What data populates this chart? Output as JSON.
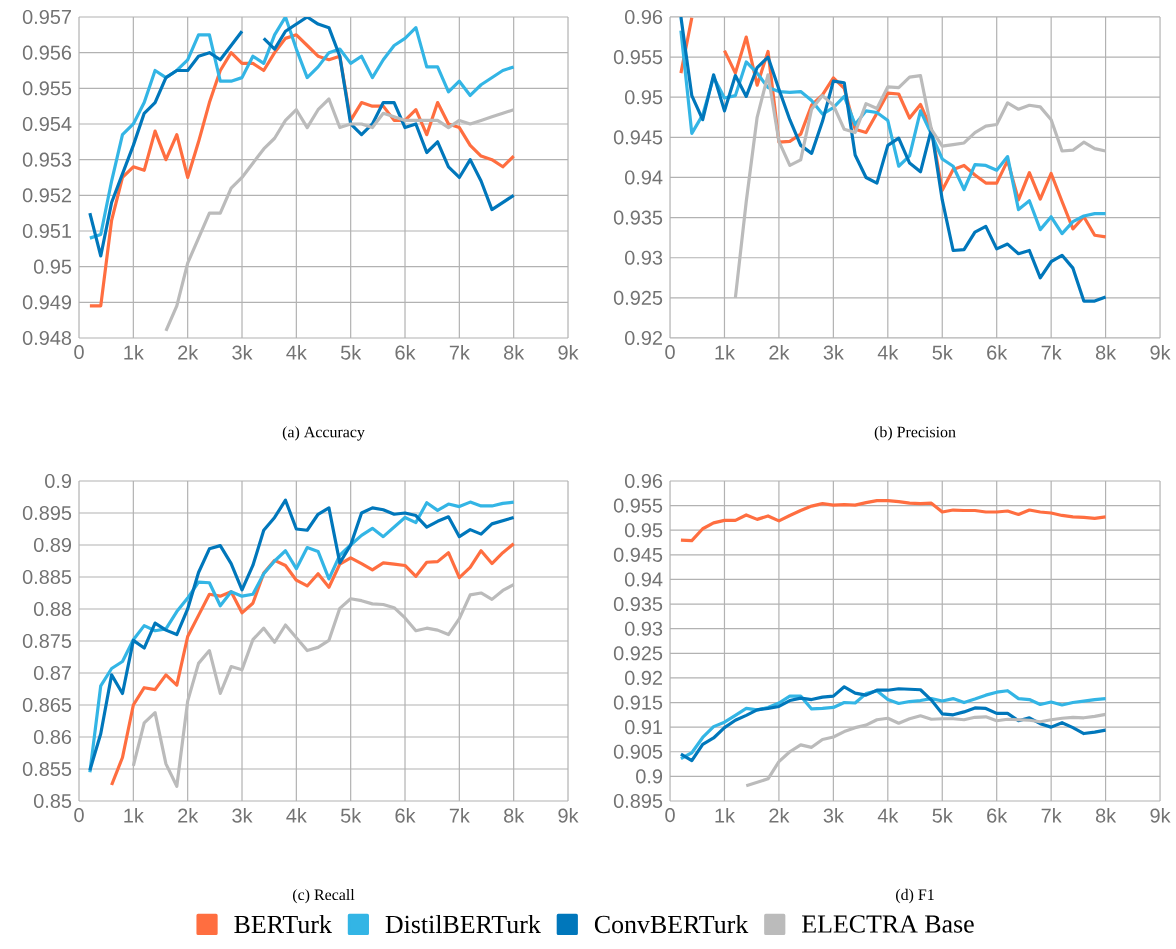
{
  "chart_data": [
    {
      "type": "line",
      "title": "(a)  Accuracy",
      "legend": "bottom",
      "grid": true,
      "x": [
        200,
        400,
        600,
        800,
        1000,
        1200,
        1400,
        1600,
        1800,
        2000,
        2200,
        2400,
        2600,
        2800,
        3000,
        3200,
        3400,
        3600,
        3800,
        4000,
        4200,
        4400,
        4600,
        4800,
        5000,
        5200,
        5400,
        5600,
        5800,
        6000,
        6200,
        6400,
        6600,
        6800,
        7000,
        7200,
        7400,
        7600,
        7800,
        8000
      ],
      "xlim": [
        0,
        9000
      ],
      "xticks": [
        {
          "value": 0,
          "label": "0"
        },
        {
          "value": 1000,
          "label": "1k"
        },
        {
          "value": 2000,
          "label": "2k"
        },
        {
          "value": 3000,
          "label": "3k"
        },
        {
          "value": 4000,
          "label": "4k"
        },
        {
          "value": 5000,
          "label": "5k"
        },
        {
          "value": 6000,
          "label": "6k"
        },
        {
          "value": 7000,
          "label": "7k"
        },
        {
          "value": 8000,
          "label": "8k"
        },
        {
          "value": 9000,
          "label": "9k"
        }
      ],
      "ylim": [
        0.948,
        0.957
      ],
      "yticks": [
        0.948,
        0.949,
        0.95,
        0.951,
        0.952,
        0.953,
        0.954,
        0.955,
        0.956,
        0.957
      ],
      "series": [
        {
          "name": "BERTurk",
          "color": "#ff6e40",
          "values": [
            0.9489,
            0.9489,
            0.9513,
            0.9525,
            0.9528,
            0.9527,
            0.9538,
            0.953,
            0.9537,
            0.9525,
            0.9535,
            0.9546,
            0.9555,
            0.956,
            0.9557,
            0.9557,
            0.9555,
            0.956,
            0.9564,
            0.9565,
            0.9562,
            0.9559,
            0.9558,
            0.9559,
            0.9541,
            0.9546,
            0.9545,
            0.9545,
            0.9541,
            0.9541,
            0.9544,
            0.9537,
            0.9546,
            0.954,
            0.9539,
            0.9534,
            0.9531,
            0.953,
            0.9528,
            0.9531
          ]
        },
        {
          "name": "DistilBERTurk",
          "color": "#33b5e5",
          "values": [
            0.9508,
            0.9509,
            0.9524,
            0.9537,
            0.954,
            0.9546,
            0.9555,
            0.9553,
            0.9555,
            0.9558,
            0.9565,
            0.9565,
            0.9552,
            0.9552,
            0.9553,
            0.9559,
            0.9557,
            0.9565,
            0.957,
            0.9561,
            0.9553,
            0.9556,
            0.956,
            0.9561,
            0.9557,
            0.9559,
            0.9553,
            0.9558,
            0.9562,
            0.9564,
            0.9567,
            0.9556,
            0.9556,
            0.9549,
            0.9552,
            0.9548,
            0.9551,
            0.9553,
            0.9555,
            0.9556
          ]
        },
        {
          "name": "ConvBERTurk",
          "color": "#0077bb",
          "values": [
            0.9515,
            0.9503,
            0.9518,
            0.9526,
            0.9534,
            0.9543,
            0.9546,
            0.9553,
            0.9555,
            0.9555,
            0.9559,
            0.956,
            0.9558,
            0.9562,
            0.9566,
            null,
            0.9564,
            0.9561,
            0.9566,
            0.9568,
            0.957,
            0.9568,
            0.9567,
            0.9559,
            0.954,
            0.9537,
            0.954,
            0.9546,
            0.9546,
            0.9539,
            0.954,
            0.9532,
            0.9535,
            0.9528,
            0.9525,
            0.953,
            0.9524,
            0.9516,
            0.9518,
            0.952
          ]
        },
        {
          "name": "ELECTRA Base",
          "color": "#bbbbbb",
          "values": [
            null,
            null,
            null,
            null,
            null,
            null,
            null,
            0.9482,
            0.9489,
            0.9501,
            0.9508,
            0.9515,
            0.9515,
            0.9522,
            0.9525,
            0.9529,
            0.9533,
            0.9536,
            0.9541,
            0.9544,
            0.9539,
            0.9544,
            0.9547,
            0.9539,
            0.954,
            0.954,
            0.9539,
            0.9543,
            0.9542,
            0.9541,
            0.9541,
            0.9541,
            0.9541,
            0.9539,
            0.9541,
            0.954,
            0.9541,
            0.9542,
            0.9543,
            0.9544
          ]
        }
      ]
    },
    {
      "type": "line",
      "title": "(b)  Precision",
      "grid": true,
      "x": [
        200,
        400,
        600,
        800,
        1000,
        1200,
        1400,
        1600,
        1800,
        2000,
        2200,
        2400,
        2600,
        2800,
        3000,
        3200,
        3400,
        3600,
        3800,
        4000,
        4200,
        4400,
        4600,
        4800,
        5000,
        5200,
        5400,
        5600,
        5800,
        6000,
        6200,
        6400,
        6600,
        6800,
        7000,
        7200,
        7400,
        7600,
        7800,
        8000
      ],
      "xlim": [
        0,
        9000
      ],
      "xticks": [
        {
          "value": 0,
          "label": "0"
        },
        {
          "value": 1000,
          "label": "1k"
        },
        {
          "value": 2000,
          "label": "2k"
        },
        {
          "value": 3000,
          "label": "3k"
        },
        {
          "value": 4000,
          "label": "4k"
        },
        {
          "value": 5000,
          "label": "5k"
        },
        {
          "value": 6000,
          "label": "6k"
        },
        {
          "value": 7000,
          "label": "7k"
        },
        {
          "value": 8000,
          "label": "8k"
        },
        {
          "value": 9000,
          "label": "9k"
        }
      ],
      "ylim": [
        0.92,
        0.96
      ],
      "yticks": [
        0.92,
        0.925,
        0.93,
        0.935,
        0.94,
        0.945,
        0.95,
        0.955,
        0.96
      ],
      "series": [
        {
          "color": "#ff6e40",
          "values": [
            0.953,
            0.9599,
            null,
            null,
            0.9558,
            0.953,
            0.9575,
            0.9515,
            0.9557,
            0.9444,
            0.9445,
            0.9454,
            0.949,
            0.9503,
            0.9524,
            0.9511,
            0.946,
            0.9456,
            0.948,
            0.9505,
            0.9504,
            0.9474,
            0.9491,
            0.946,
            0.9384,
            0.941,
            0.9415,
            0.9403,
            0.9393,
            0.9393,
            0.9421,
            0.9372,
            0.9406,
            0.9373,
            0.9405,
            0.937,
            0.9336,
            0.9351,
            0.9328,
            0.9326
          ]
        },
        {
          "color": "#33b5e5",
          "values": [
            0.9583,
            0.9455,
            0.9478,
            0.9525,
            0.9499,
            0.9502,
            0.9544,
            0.953,
            0.9512,
            0.9507,
            0.9506,
            0.9507,
            0.9496,
            0.9479,
            0.9487,
            0.9501,
            0.9466,
            0.9483,
            0.9481,
            0.9471,
            0.9414,
            0.9427,
            0.9483,
            0.9454,
            0.9423,
            0.9414,
            0.9385,
            0.9416,
            0.9415,
            0.9409,
            0.9426,
            0.936,
            0.9371,
            0.9335,
            0.9351,
            0.933,
            0.9345,
            0.9352,
            0.9355,
            0.9355
          ]
        },
        {
          "color": "#0077bb",
          "values": [
            0.96,
            0.9502,
            0.9472,
            0.9528,
            0.9483,
            0.9527,
            0.9501,
            0.9537,
            0.955,
            0.951,
            0.9472,
            0.944,
            0.943,
            0.947,
            0.952,
            0.9518,
            0.9428,
            0.94,
            0.9393,
            0.944,
            0.9449,
            0.9418,
            0.9407,
            0.946,
            0.9372,
            0.9309,
            0.931,
            0.9332,
            0.9339,
            0.9311,
            0.9317,
            0.9305,
            0.9309,
            0.9275,
            0.9295,
            0.9303,
            0.9287,
            0.9246,
            0.9246,
            0.9251
          ]
        },
        {
          "color": "#bbbbbb",
          "values": [
            null,
            null,
            null,
            null,
            null,
            0.925,
            0.937,
            0.9475,
            0.9528,
            0.9445,
            0.9415,
            0.9422,
            0.9485,
            0.9502,
            0.949,
            0.946,
            0.9456,
            0.9492,
            0.9486,
            0.9513,
            0.9512,
            0.9525,
            0.9527,
            0.946,
            0.9439,
            0.9441,
            0.9443,
            0.9456,
            0.9464,
            0.9466,
            0.9493,
            0.9485,
            0.949,
            0.9488,
            0.9472,
            0.9433,
            0.9434,
            0.9444,
            0.9436,
            0.9433
          ]
        }
      ]
    },
    {
      "type": "line",
      "title": "(c)  Recall",
      "grid": true,
      "x": [
        200,
        400,
        600,
        800,
        1000,
        1200,
        1400,
        1600,
        1800,
        2000,
        2200,
        2400,
        2600,
        2800,
        3000,
        3200,
        3400,
        3600,
        3800,
        4000,
        4200,
        4400,
        4600,
        4800,
        5000,
        5200,
        5400,
        5600,
        5800,
        6000,
        6200,
        6400,
        6600,
        6800,
        7000,
        7200,
        7400,
        7600,
        7800,
        8000
      ],
      "xlim": [
        0,
        9000
      ],
      "xticks": [
        {
          "value": 0,
          "label": "0"
        },
        {
          "value": 1000,
          "label": "1k"
        },
        {
          "value": 2000,
          "label": "2k"
        },
        {
          "value": 3000,
          "label": "3k"
        },
        {
          "value": 4000,
          "label": "4k"
        },
        {
          "value": 5000,
          "label": "5k"
        },
        {
          "value": 6000,
          "label": "6k"
        },
        {
          "value": 7000,
          "label": "7k"
        },
        {
          "value": 8000,
          "label": "8k"
        },
        {
          "value": 9000,
          "label": "9k"
        }
      ],
      "ylim": [
        0.85,
        0.9
      ],
      "yticks": [
        0.85,
        0.855,
        0.86,
        0.865,
        0.87,
        0.875,
        0.88,
        0.885,
        0.89,
        0.895,
        0.9
      ],
      "series": [
        {
          "color": "#ff6e40",
          "values": [
            null,
            null,
            0.8525,
            0.8568,
            0.865,
            0.8677,
            0.8674,
            0.8697,
            0.8681,
            0.8757,
            0.879,
            0.8823,
            0.882,
            0.8827,
            0.8794,
            0.8809,
            0.8856,
            0.8876,
            0.8868,
            0.8845,
            0.8836,
            0.8855,
            0.8834,
            0.887,
            0.888,
            0.8871,
            0.8861,
            0.8872,
            0.887,
            0.8868,
            0.8851,
            0.8873,
            0.8874,
            0.8888,
            0.8849,
            0.8865,
            0.8891,
            0.8871,
            0.8888,
            0.8902
          ]
        },
        {
          "color": "#33b5e5",
          "values": [
            0.8545,
            0.868,
            0.8707,
            0.8718,
            0.8752,
            0.8774,
            0.8766,
            0.8769,
            0.8796,
            0.8817,
            0.8842,
            0.8841,
            0.8805,
            0.8827,
            0.882,
            0.8823,
            0.8855,
            0.8875,
            0.8891,
            0.8863,
            0.8896,
            0.889,
            0.8847,
            0.8884,
            0.89,
            0.8915,
            0.8926,
            0.8913,
            0.8928,
            0.8943,
            0.8935,
            0.8966,
            0.8954,
            0.8964,
            0.896,
            0.8967,
            0.8961,
            0.8961,
            0.8965,
            0.8967
          ]
        },
        {
          "color": "#0077bb",
          "values": [
            0.8548,
            0.8605,
            0.8697,
            0.8668,
            0.8751,
            0.8739,
            0.8778,
            0.8767,
            0.876,
            0.88,
            0.8857,
            0.8894,
            0.8899,
            0.8871,
            0.883,
            0.8868,
            0.8923,
            0.8943,
            0.897,
            0.8925,
            0.8923,
            0.8948,
            0.8958,
            0.8872,
            0.89,
            0.895,
            0.8958,
            0.8955,
            0.8948,
            0.895,
            0.8946,
            0.8928,
            0.8937,
            0.8944,
            0.8913,
            0.8924,
            0.8917,
            0.8933,
            0.8938,
            0.8943
          ]
        },
        {
          "color": "#bbbbbb",
          "values": [
            null,
            null,
            null,
            null,
            0.8555,
            0.8622,
            0.8638,
            0.8558,
            0.8523,
            0.8656,
            0.8715,
            0.8735,
            0.8668,
            0.871,
            0.8705,
            0.8752,
            0.877,
            0.8748,
            0.8775,
            0.8755,
            0.8735,
            0.874,
            0.8751,
            0.8801,
            0.8816,
            0.8813,
            0.8808,
            0.8807,
            0.8802,
            0.8786,
            0.8766,
            0.877,
            0.8767,
            0.876,
            0.8785,
            0.8822,
            0.8825,
            0.8815,
            0.8829,
            0.8838
          ]
        }
      ]
    },
    {
      "type": "line",
      "title": "(d)  F1",
      "grid": true,
      "x": [
        200,
        400,
        600,
        800,
        1000,
        1200,
        1400,
        1600,
        1800,
        2000,
        2200,
        2400,
        2600,
        2800,
        3000,
        3200,
        3400,
        3600,
        3800,
        4000,
        4200,
        4400,
        4600,
        4800,
        5000,
        5200,
        5400,
        5600,
        5800,
        6000,
        6200,
        6400,
        6600,
        6800,
        7000,
        7200,
        7400,
        7600,
        7800,
        8000
      ],
      "xlim": [
        0,
        9000
      ],
      "xticks": [
        {
          "value": 0,
          "label": "0"
        },
        {
          "value": 1000,
          "label": "1k"
        },
        {
          "value": 2000,
          "label": "2k"
        },
        {
          "value": 3000,
          "label": "3k"
        },
        {
          "value": 4000,
          "label": "4k"
        },
        {
          "value": 5000,
          "label": "5k"
        },
        {
          "value": 6000,
          "label": "6k"
        },
        {
          "value": 7000,
          "label": "7k"
        },
        {
          "value": 8000,
          "label": "8k"
        },
        {
          "value": 9000,
          "label": "9k"
        }
      ],
      "ylim": [
        0.895,
        0.96
      ],
      "yticks": [
        0.895,
        0.9,
        0.905,
        0.91,
        0.915,
        0.92,
        0.925,
        0.93,
        0.935,
        0.94,
        0.945,
        0.95,
        0.955,
        0.96
      ],
      "series": [
        {
          "color": "#ff6e40",
          "values": [
            0.948,
            0.9479,
            0.9503,
            0.9515,
            0.952,
            0.952,
            0.9531,
            0.9522,
            0.9529,
            0.9519,
            0.953,
            0.954,
            0.9549,
            0.9554,
            0.9551,
            0.9552,
            0.9551,
            0.9556,
            0.956,
            0.956,
            0.9558,
            0.9555,
            0.9554,
            0.9555,
            0.9537,
            0.9541,
            0.954,
            0.954,
            0.9537,
            0.9537,
            0.9539,
            0.9532,
            0.9541,
            0.9537,
            0.9535,
            0.953,
            0.9527,
            0.9526,
            0.9524,
            0.9527
          ]
        },
        {
          "color": "#33b5e5",
          "values": [
            0.9036,
            0.9048,
            0.9079,
            0.9101,
            0.911,
            0.9124,
            0.9138,
            0.9135,
            0.914,
            0.9149,
            0.9163,
            0.9163,
            0.9137,
            0.9138,
            0.914,
            0.915,
            0.9149,
            0.9168,
            0.9174,
            0.9156,
            0.9148,
            0.9152,
            0.9154,
            0.9158,
            0.9153,
            0.9158,
            0.915,
            0.9157,
            0.9165,
            0.9171,
            0.9174,
            0.9158,
            0.9156,
            0.9146,
            0.9151,
            0.9145,
            0.915,
            0.9153,
            0.9156,
            0.9158
          ]
        },
        {
          "color": "#0077bb",
          "values": [
            0.9045,
            0.9032,
            0.9065,
            0.9078,
            0.9099,
            0.9114,
            0.9124,
            0.9135,
            0.9138,
            0.9142,
            0.9154,
            0.9159,
            0.9156,
            0.9161,
            0.9163,
            0.9182,
            0.9169,
            0.9165,
            0.9175,
            0.9175,
            0.9178,
            0.9177,
            0.9176,
            0.9155,
            0.9127,
            0.9125,
            0.9131,
            0.9139,
            0.9138,
            0.9128,
            0.9128,
            0.9113,
            0.9119,
            0.9107,
            0.91,
            0.9109,
            0.9099,
            0.9087,
            0.909,
            0.9094
          ]
        },
        {
          "color": "#bbbbbb",
          "values": [
            null,
            null,
            null,
            null,
            null,
            null,
            0.8981,
            0.8988,
            0.8995,
            0.903,
            0.905,
            0.9064,
            0.9059,
            0.9075,
            0.908,
            0.9091,
            0.9099,
            0.9104,
            0.9115,
            0.9118,
            0.9108,
            0.9117,
            0.9123,
            0.9116,
            0.9117,
            0.9117,
            0.9115,
            0.912,
            0.9121,
            0.9113,
            0.9116,
            0.9115,
            0.9114,
            0.9111,
            0.9115,
            0.9118,
            0.912,
            0.9119,
            0.9122,
            0.9126
          ]
        }
      ]
    }
  ]
}
